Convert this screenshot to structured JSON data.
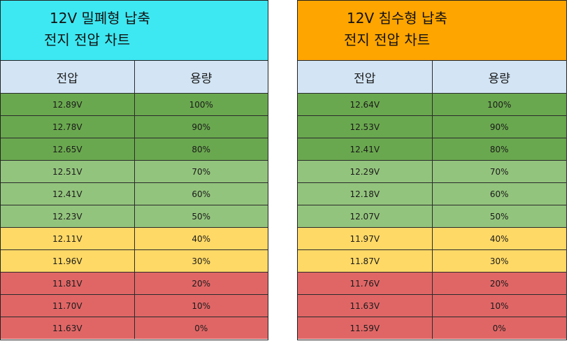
{
  "left_table": {
    "title_line1": "12V 밀폐형 납축",
    "title_line2": "전지 전압 차트",
    "header_voltage": "전압",
    "header_capacity": "용량",
    "rows": [
      {
        "voltage": "12.89V",
        "capacity": "100%"
      },
      {
        "voltage": "12.78V",
        "capacity": "90%"
      },
      {
        "voltage": "12.65V",
        "capacity": "80%"
      },
      {
        "voltage": "12.51V",
        "capacity": "70%"
      },
      {
        "voltage": "12.41V",
        "capacity": "60%"
      },
      {
        "voltage": "12.23V",
        "capacity": "50%"
      },
      {
        "voltage": "12.11V",
        "capacity": "40%"
      },
      {
        "voltage": "11.96V",
        "capacity": "30%"
      },
      {
        "voltage": "11.81V",
        "capacity": "20%"
      },
      {
        "voltage": "11.70V",
        "capacity": "10%"
      },
      {
        "voltage": "11.63V",
        "capacity": "0%"
      }
    ]
  },
  "right_table": {
    "title_line1": "12V 침수형 납축",
    "title_line2": "전지 전압 차트",
    "header_voltage": "전압",
    "header_capacity": "용량",
    "rows": [
      {
        "voltage": "12.64V",
        "capacity": "100%"
      },
      {
        "voltage": "12.53V",
        "capacity": "90%"
      },
      {
        "voltage": "12.41V",
        "capacity": "80%"
      },
      {
        "voltage": "12.29V",
        "capacity": "70%"
      },
      {
        "voltage": "12.18V",
        "capacity": "60%"
      },
      {
        "voltage": "12.07V",
        "capacity": "50%"
      },
      {
        "voltage": "11.97V",
        "capacity": "40%"
      },
      {
        "voltage": "11.87V",
        "capacity": "30%"
      },
      {
        "voltage": "11.76V",
        "capacity": "20%"
      },
      {
        "voltage": "11.63V",
        "capacity": "10%"
      },
      {
        "voltage": "11.59V",
        "capacity": "0%"
      }
    ]
  },
  "colors": {
    "left_title_bg": "#3ee8f2",
    "right_title_bg": "#ffa500",
    "header_bg": "#d3e5f5",
    "dark_green": "#6aa84f",
    "light_green": "#93c47d",
    "yellow": "#ffd966",
    "red": "#e06666"
  }
}
